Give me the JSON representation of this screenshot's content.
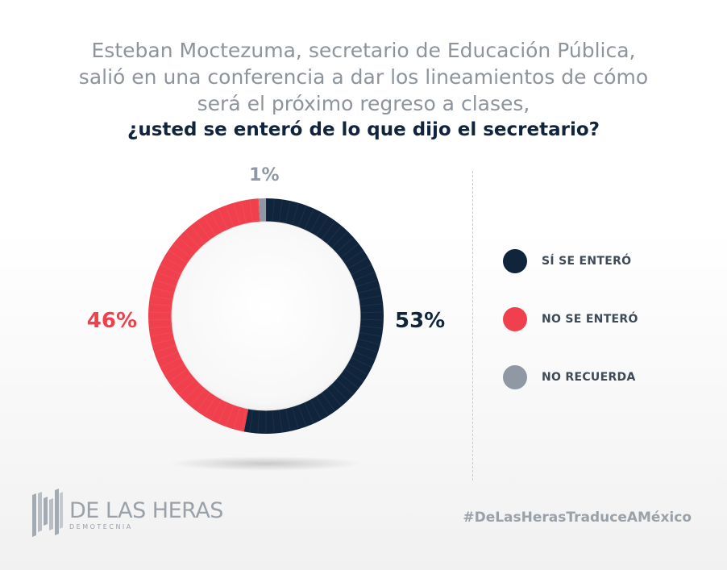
{
  "title": {
    "line1": "Esteban Moctezuma, secretario de Educación Pública,",
    "line2": "salió en una conferencia a dar los lineamientos de cómo",
    "line3": "será el próximo regreso a clases,",
    "question": "¿usted se enteró de lo que dijo el secretario?"
  },
  "chart_data": {
    "type": "pie",
    "variant": "donut",
    "title": "¿usted se enteró de lo que dijo el secretario?",
    "categories": [
      "SÍ SE ENTERÓ",
      "NO SE ENTERÓ",
      "NO RECUERDA"
    ],
    "values": [
      53,
      46,
      1
    ],
    "labels": [
      "53%",
      "46%",
      "1%"
    ],
    "colors": [
      "#10243c",
      "#f0404d",
      "#8f98a3"
    ],
    "legend_position": "right"
  },
  "legend": {
    "items": [
      {
        "label": "SÍ SE ENTERÓ",
        "color": "#10243c"
      },
      {
        "label": "NO SE ENTERÓ",
        "color": "#f0404d"
      },
      {
        "label": "NO RECUERDA",
        "color": "#8f98a3"
      }
    ]
  },
  "footer": {
    "brand_name": "DE LAS HERAS",
    "brand_sub": "DEMOTECNIA",
    "hashtag": "#DeLasHerasTraduceAMéxico"
  }
}
